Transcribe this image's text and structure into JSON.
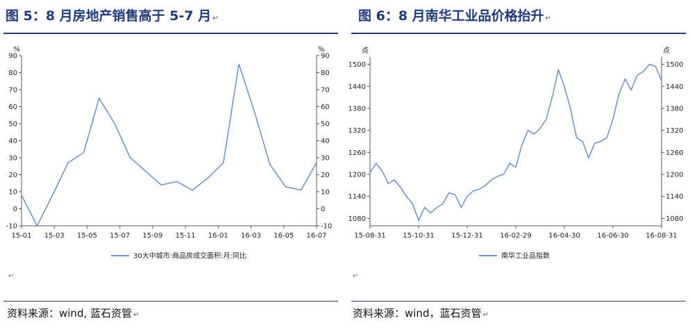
{
  "left": {
    "title": "图 5：8 月房地产销售高于 5-7 月",
    "source": "资料来源：wind, 蓝石资管",
    "para_mark": "↵",
    "title_mark": "↵",
    "source_mark": "↵"
  },
  "right": {
    "title": "图 6：8 月南华工业品价格抬升",
    "source": "资料来源：wind，蓝石资管",
    "para_mark": "↵",
    "title_mark": "↵",
    "source_mark": "↵"
  },
  "chart_data": [
    {
      "type": "line",
      "ylabel_left": "%",
      "ylabel_right": "%",
      "ylim": [
        -10,
        90
      ],
      "yticks": [
        -10,
        0,
        10,
        20,
        30,
        40,
        50,
        60,
        70,
        80,
        90
      ],
      "x_tick_labels": [
        "15-01",
        "15-03",
        "15-05",
        "15-07",
        "15-09",
        "15-11",
        "16-01",
        "16-03",
        "16-05",
        "16-07"
      ],
      "color": "#6b8fc2",
      "series": [
        {
          "name": "30大中城市:商品房成交面积:月:同比",
          "x": [
            "15-01",
            "15-02",
            "15-03",
            "15-04",
            "15-05",
            "15-06",
            "15-07",
            "15-08",
            "15-09",
            "15-10",
            "15-11",
            "15-12",
            "16-01",
            "16-02",
            "16-03",
            "16-04",
            "16-05",
            "16-06",
            "16-07",
            "16-08"
          ],
          "values": [
            8,
            -10,
            8,
            27,
            33,
            65,
            50,
            30,
            22,
            14,
            16,
            11,
            18,
            27,
            85,
            57,
            26,
            13,
            11,
            27
          ]
        }
      ]
    },
    {
      "type": "line",
      "ylabel_left": "点",
      "ylabel_right": "点",
      "ylim": [
        1060,
        1520
      ],
      "yticks": [
        1080,
        1140,
        1200,
        1260,
        1320,
        1380,
        1440,
        1500
      ],
      "x_tick_labels": [
        "15-08-31",
        "15-10-31",
        "15-12-31",
        "16-02-29",
        "16-04-30",
        "16-06-30",
        "16-08-31"
      ],
      "color": "#6b8fc2",
      "series": [
        {
          "name": "南华工业品指数",
          "x": [
            "15-08-31",
            "15-09-08",
            "15-09-15",
            "15-09-22",
            "15-09-30",
            "15-10-08",
            "15-10-15",
            "15-10-22",
            "15-10-31",
            "15-11-08",
            "15-11-15",
            "15-11-22",
            "15-11-30",
            "15-12-08",
            "15-12-15",
            "15-12-22",
            "15-12-31",
            "16-01-08",
            "16-01-15",
            "16-01-22",
            "16-01-31",
            "16-02-08",
            "16-02-15",
            "16-02-22",
            "16-02-29",
            "16-03-08",
            "16-03-15",
            "16-03-22",
            "16-03-31",
            "16-04-08",
            "16-04-15",
            "16-04-22",
            "16-04-30",
            "16-05-08",
            "16-05-15",
            "16-05-22",
            "16-05-31",
            "16-06-08",
            "16-06-15",
            "16-06-22",
            "16-06-30",
            "16-07-08",
            "16-07-15",
            "16-07-22",
            "16-07-31",
            "16-08-08",
            "16-08-15",
            "16-08-22",
            "16-08-31"
          ],
          "values": [
            1205,
            1230,
            1210,
            1175,
            1185,
            1165,
            1140,
            1120,
            1075,
            1110,
            1095,
            1110,
            1120,
            1150,
            1145,
            1110,
            1140,
            1155,
            1160,
            1170,
            1185,
            1195,
            1200,
            1230,
            1220,
            1280,
            1320,
            1310,
            1325,
            1350,
            1410,
            1485,
            1440,
            1380,
            1300,
            1290,
            1245,
            1285,
            1290,
            1300,
            1350,
            1420,
            1460,
            1430,
            1470,
            1480,
            1500,
            1495,
            1455
          ]
        }
      ]
    }
  ]
}
